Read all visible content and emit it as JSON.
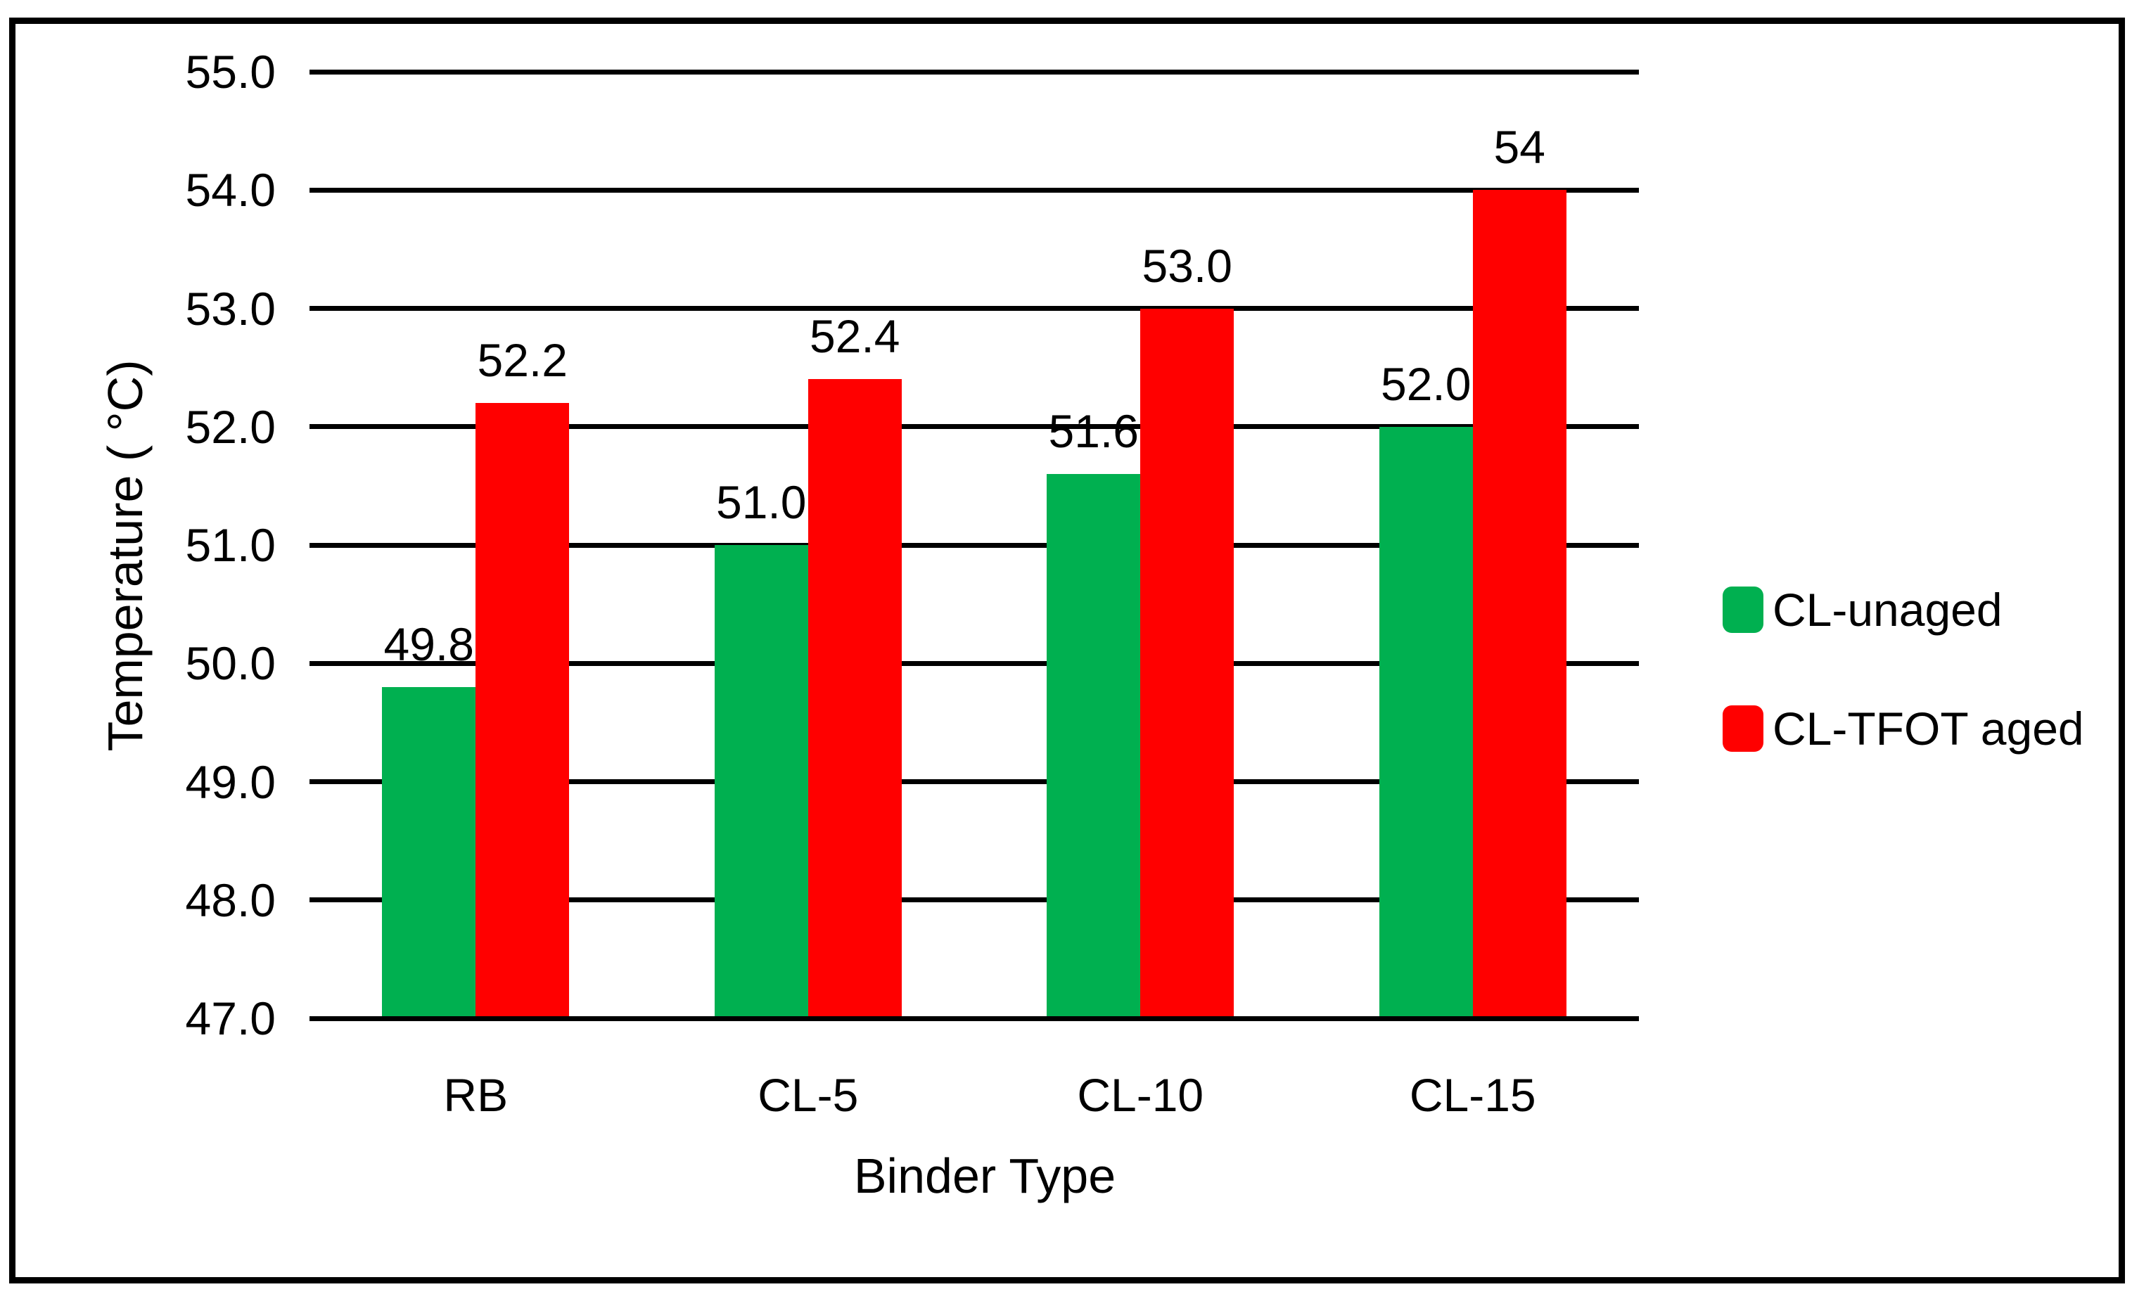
{
  "chart_data": {
    "type": "bar",
    "title": "",
    "xlabel": "Binder Type",
    "ylabel": "Temperature ( °C)",
    "categories": [
      "RB",
      "CL-5",
      "CL-10",
      "CL-15"
    ],
    "series": [
      {
        "name": "CL-unaged",
        "color": "#00B050",
        "values": [
          49.8,
          51.0,
          51.6,
          52.0
        ],
        "labels": [
          "49.8",
          "51.0",
          "51.6",
          "52.0"
        ]
      },
      {
        "name": "CL-TFOT aged",
        "color": "#FF0000",
        "values": [
          52.2,
          52.4,
          53.0,
          54.0
        ],
        "labels": [
          "52.2",
          "52.4",
          "53.0",
          "54"
        ]
      }
    ],
    "ylim": [
      47.0,
      55.0
    ],
    "ytick_step": 1.0,
    "ytick_labels": [
      "47.0",
      "48.0",
      "49.0",
      "50.0",
      "51.0",
      "52.0",
      "53.0",
      "54.0",
      "55.0"
    ],
    "grid": "horizontal",
    "gridline_color": "#000000",
    "legend_position": "right"
  }
}
